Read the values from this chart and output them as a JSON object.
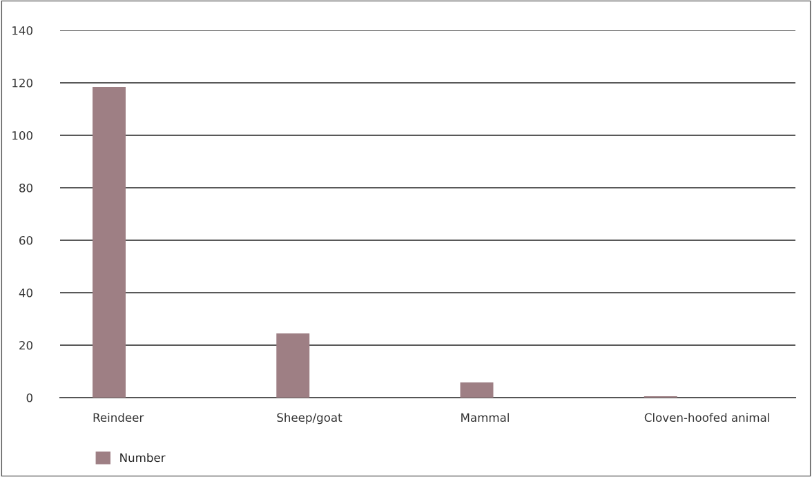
{
  "chart_data": {
    "type": "bar",
    "categories": [
      "Reindeer",
      "Sheep/goat",
      "Mammal",
      "Cloven-hoofed animal"
    ],
    "series": [
      {
        "name": "Number",
        "color": "#9e7f84",
        "values": [
          118.4,
          24.5,
          5.8,
          0.5
        ]
      }
    ],
    "ylim": [
      0,
      140
    ],
    "yticks": [
      0,
      20,
      40,
      60,
      80,
      100,
      120,
      140
    ],
    "grid": "y",
    "legend": "bottom left"
  }
}
